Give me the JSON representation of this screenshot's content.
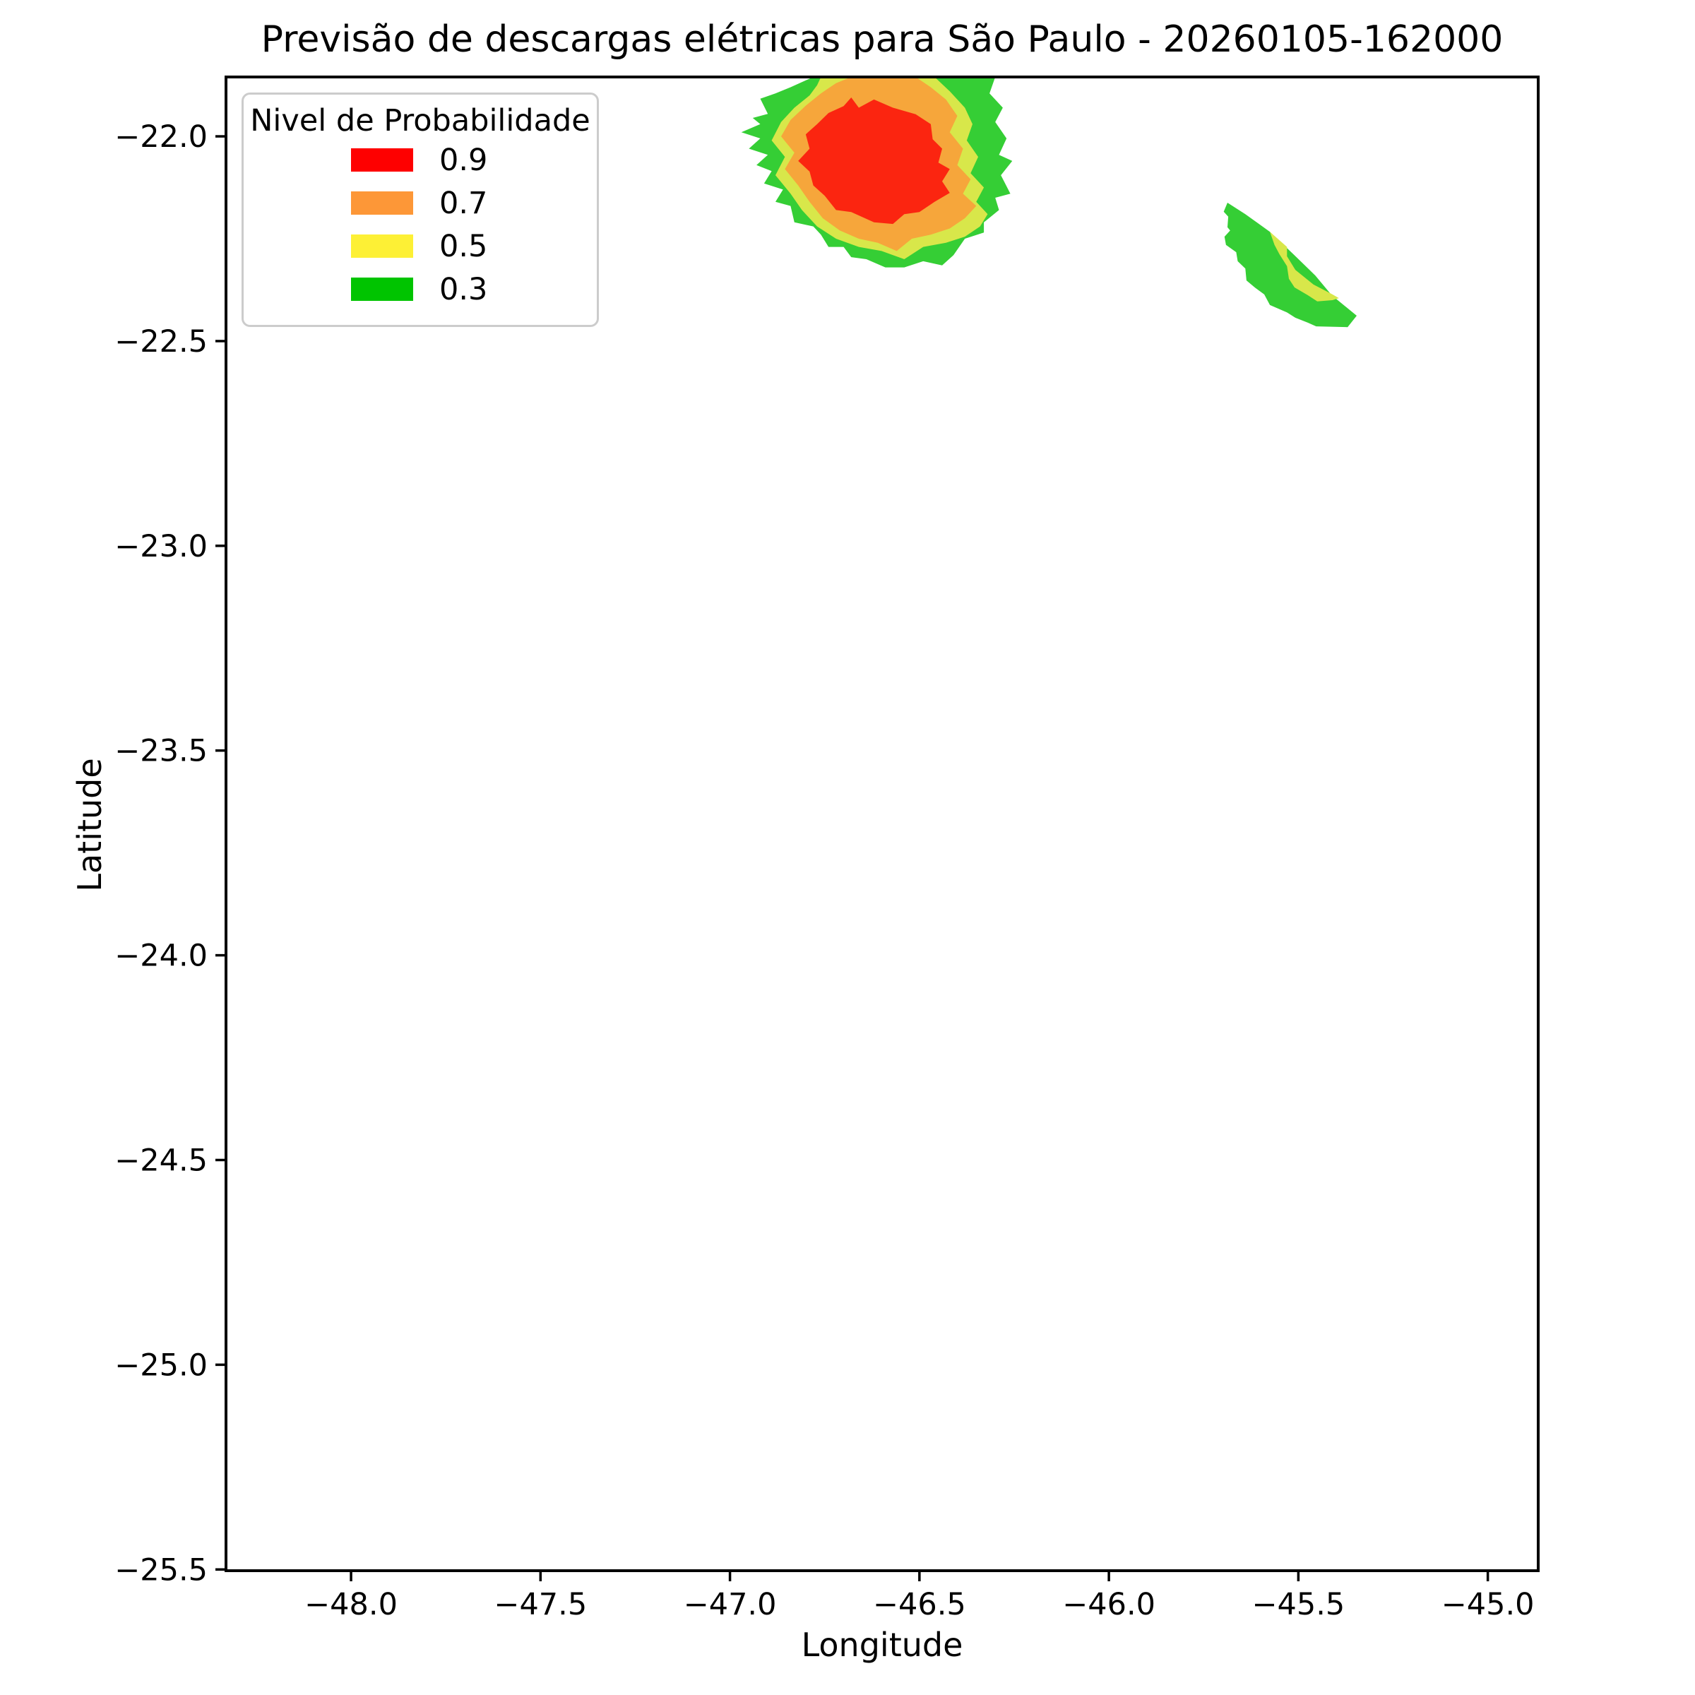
{
  "figure": {
    "title": "Previsão de descargas elétricas para São Paulo - 20260105-162000",
    "background": "#ffffff"
  },
  "chart_data": {
    "type": "contour",
    "title": "Previsão de descargas elétricas para São Paulo - 20260105-162000",
    "xlabel": "Longitude",
    "ylabel": "Latitude",
    "xlim": [
      -48.33,
      -44.867
    ],
    "ylim": [
      -25.503,
      -21.855
    ],
    "grid": false,
    "x_ticks": [
      -48.0,
      -47.5,
      -47.0,
      -46.5,
      -46.0,
      -45.5,
      -45.0
    ],
    "x_tick_labels": [
      "−48.0",
      "−47.5",
      "−47.0",
      "−46.5",
      "−46.0",
      "−45.5",
      "−45.0"
    ],
    "y_ticks": [
      -22.0,
      -22.5,
      -23.0,
      -23.5,
      -24.0,
      -24.5,
      -25.0,
      -25.5
    ],
    "y_tick_labels": [
      "−22.0",
      "−22.5",
      "−23.0",
      "−23.5",
      "−24.0",
      "−24.5",
      "−25.0",
      "−25.5"
    ],
    "legend": {
      "title": "Nivel de Probabilidade",
      "position": "upper left",
      "items": [
        {
          "label": "0.9",
          "color": "#fe0000"
        },
        {
          "label": "0.7",
          "color": "#fd9737"
        },
        {
          "label": "0.5",
          "color": "#fdf035"
        },
        {
          "label": "0.3",
          "color": "#00c400"
        }
      ]
    },
    "contour_levels": [
      0.3,
      0.5,
      0.7,
      0.9
    ],
    "fill_colors": {
      "p30": "#35ce35",
      "p50": "#d8e74a",
      "p70": "#f6a63b",
      "p90": "#fb2510"
    },
    "regions": [
      {
        "name": "storm-cell-a-prob-0.3",
        "level": 0.3,
        "color": "#35ce35",
        "points": [
          [
            -46.78,
            -21.855
          ],
          [
            -46.3,
            -21.855
          ],
          [
            -46.315,
            -21.895
          ],
          [
            -46.28,
            -21.93
          ],
          [
            -46.3,
            -21.965
          ],
          [
            -46.27,
            -22.005
          ],
          [
            -46.29,
            -22.045
          ],
          [
            -46.255,
            -22.06
          ],
          [
            -46.285,
            -22.095
          ],
          [
            -46.26,
            -22.14
          ],
          [
            -46.3,
            -22.15
          ],
          [
            -46.29,
            -22.18
          ],
          [
            -46.33,
            -22.21
          ],
          [
            -46.33,
            -22.235
          ],
          [
            -46.38,
            -22.25
          ],
          [
            -46.41,
            -22.29
          ],
          [
            -46.44,
            -22.315
          ],
          [
            -46.49,
            -22.305
          ],
          [
            -46.54,
            -22.32
          ],
          [
            -46.59,
            -22.32
          ],
          [
            -46.64,
            -22.3
          ],
          [
            -46.68,
            -22.295
          ],
          [
            -46.7,
            -22.27
          ],
          [
            -46.74,
            -22.27
          ],
          [
            -46.76,
            -22.24
          ],
          [
            -46.78,
            -22.22
          ],
          [
            -46.83,
            -22.21
          ],
          [
            -46.84,
            -22.17
          ],
          [
            -46.88,
            -22.16
          ],
          [
            -46.86,
            -22.13
          ],
          [
            -46.91,
            -22.115
          ],
          [
            -46.89,
            -22.085
          ],
          [
            -46.93,
            -22.07
          ],
          [
            -46.9,
            -22.045
          ],
          [
            -46.95,
            -22.03
          ],
          [
            -46.92,
            -22.005
          ],
          [
            -46.97,
            -21.99
          ],
          [
            -46.92,
            -21.97
          ],
          [
            -46.94,
            -21.955
          ],
          [
            -46.9,
            -21.945
          ],
          [
            -46.92,
            -21.908
          ],
          [
            -46.88,
            -21.895
          ],
          [
            -46.84,
            -21.88
          ]
        ]
      },
      {
        "name": "storm-cell-a-prob-0.5",
        "level": 0.5,
        "color": "#d8e74a",
        "points": [
          [
            -46.76,
            -21.855
          ],
          [
            -46.46,
            -21.855
          ],
          [
            -46.42,
            -21.89
          ],
          [
            -46.38,
            -21.93
          ],
          [
            -46.36,
            -21.97
          ],
          [
            -46.375,
            -22.01
          ],
          [
            -46.345,
            -22.05
          ],
          [
            -46.365,
            -22.09
          ],
          [
            -46.33,
            -22.125
          ],
          [
            -46.35,
            -22.16
          ],
          [
            -46.32,
            -22.19
          ],
          [
            -46.34,
            -22.22
          ],
          [
            -46.38,
            -22.245
          ],
          [
            -46.43,
            -22.26
          ],
          [
            -46.49,
            -22.27
          ],
          [
            -46.54,
            -22.3
          ],
          [
            -46.6,
            -22.28
          ],
          [
            -46.66,
            -22.27
          ],
          [
            -46.72,
            -22.25
          ],
          [
            -46.77,
            -22.22
          ],
          [
            -46.81,
            -22.18
          ],
          [
            -46.84,
            -22.14
          ],
          [
            -46.88,
            -22.095
          ],
          [
            -46.855,
            -22.05
          ],
          [
            -46.89,
            -22.01
          ],
          [
            -46.865,
            -21.965
          ],
          [
            -46.83,
            -21.93
          ],
          [
            -46.79,
            -21.9
          ],
          [
            -46.77,
            -21.875
          ]
        ]
      },
      {
        "name": "storm-cell-a-prob-0.7",
        "level": 0.7,
        "color": "#f6a63b",
        "points": [
          [
            -46.68,
            -21.855
          ],
          [
            -46.51,
            -21.855
          ],
          [
            -46.47,
            -21.88
          ],
          [
            -46.43,
            -21.91
          ],
          [
            -46.4,
            -21.95
          ],
          [
            -46.42,
            -21.99
          ],
          [
            -46.385,
            -22.03
          ],
          [
            -46.4,
            -22.07
          ],
          [
            -46.365,
            -22.105
          ],
          [
            -46.385,
            -22.14
          ],
          [
            -46.35,
            -22.17
          ],
          [
            -46.38,
            -22.2
          ],
          [
            -46.42,
            -22.225
          ],
          [
            -46.47,
            -22.24
          ],
          [
            -46.52,
            -22.25
          ],
          [
            -46.56,
            -22.28
          ],
          [
            -46.61,
            -22.26
          ],
          [
            -46.66,
            -22.25
          ],
          [
            -46.71,
            -22.23
          ],
          [
            -46.755,
            -22.2
          ],
          [
            -46.79,
            -22.16
          ],
          [
            -46.82,
            -22.12
          ],
          [
            -46.855,
            -22.08
          ],
          [
            -46.83,
            -22.04
          ],
          [
            -46.865,
            -22.0
          ],
          [
            -46.84,
            -21.96
          ],
          [
            -46.8,
            -21.925
          ],
          [
            -46.76,
            -21.895
          ],
          [
            -46.72,
            -21.87
          ]
        ]
      },
      {
        "name": "storm-cell-a-prob-0.9",
        "level": 0.9,
        "color": "#fb2510",
        "points": [
          [
            -46.7,
            -21.926
          ],
          [
            -46.68,
            -21.905
          ],
          [
            -46.66,
            -21.93
          ],
          [
            -46.62,
            -21.91
          ],
          [
            -46.57,
            -21.93
          ],
          [
            -46.54,
            -21.938
          ],
          [
            -46.51,
            -21.946
          ],
          [
            -46.47,
            -21.97
          ],
          [
            -46.465,
            -22.007
          ],
          [
            -46.44,
            -22.03
          ],
          [
            -46.45,
            -22.064
          ],
          [
            -46.42,
            -22.08
          ],
          [
            -46.44,
            -22.11
          ],
          [
            -46.42,
            -22.138
          ],
          [
            -46.46,
            -22.16
          ],
          [
            -46.5,
            -22.185
          ],
          [
            -46.54,
            -22.19
          ],
          [
            -46.57,
            -22.214
          ],
          [
            -46.62,
            -22.21
          ],
          [
            -46.68,
            -22.185
          ],
          [
            -46.72,
            -22.18
          ],
          [
            -46.75,
            -22.145
          ],
          [
            -46.78,
            -22.12
          ],
          [
            -46.79,
            -22.086
          ],
          [
            -46.82,
            -22.06
          ],
          [
            -46.79,
            -22.03
          ],
          [
            -46.8,
            -21.995
          ],
          [
            -46.77,
            -21.97
          ],
          [
            -46.74,
            -21.943
          ]
        ]
      },
      {
        "name": "storm-cell-b-prob-0.3",
        "level": 0.3,
        "color": "#35ce35",
        "points": [
          [
            -45.687,
            -22.162
          ],
          [
            -45.64,
            -22.19
          ],
          [
            -45.575,
            -22.233
          ],
          [
            -45.513,
            -22.288
          ],
          [
            -45.455,
            -22.34
          ],
          [
            -45.412,
            -22.388
          ],
          [
            -45.346,
            -22.438
          ],
          [
            -45.37,
            -22.466
          ],
          [
            -45.453,
            -22.464
          ],
          [
            -45.475,
            -22.455
          ],
          [
            -45.508,
            -22.443
          ],
          [
            -45.53,
            -22.43
          ],
          [
            -45.575,
            -22.412
          ],
          [
            -45.59,
            -22.386
          ],
          [
            -45.615,
            -22.369
          ],
          [
            -45.637,
            -22.352
          ],
          [
            -45.64,
            -22.323
          ],
          [
            -45.66,
            -22.305
          ],
          [
            -45.664,
            -22.283
          ],
          [
            -45.691,
            -22.265
          ],
          [
            -45.695,
            -22.245
          ],
          [
            -45.68,
            -22.23
          ],
          [
            -45.687,
            -22.222
          ],
          [
            -45.685,
            -22.196
          ],
          [
            -45.697,
            -22.184
          ]
        ]
      },
      {
        "name": "storm-cell-b-prob-0.5",
        "level": 0.5,
        "color": "#d8e74a",
        "points": [
          [
            -45.575,
            -22.233
          ],
          [
            -45.53,
            -22.27
          ],
          [
            -45.53,
            -22.293
          ],
          [
            -45.508,
            -22.326
          ],
          [
            -45.46,
            -22.362
          ],
          [
            -45.41,
            -22.386
          ],
          [
            -45.393,
            -22.395
          ],
          [
            -45.41,
            -22.4
          ],
          [
            -45.45,
            -22.403
          ],
          [
            -45.475,
            -22.388
          ],
          [
            -45.51,
            -22.369
          ],
          [
            -45.525,
            -22.348
          ],
          [
            -45.53,
            -22.317
          ],
          [
            -45.55,
            -22.288
          ],
          [
            -45.563,
            -22.265
          ]
        ]
      }
    ]
  }
}
